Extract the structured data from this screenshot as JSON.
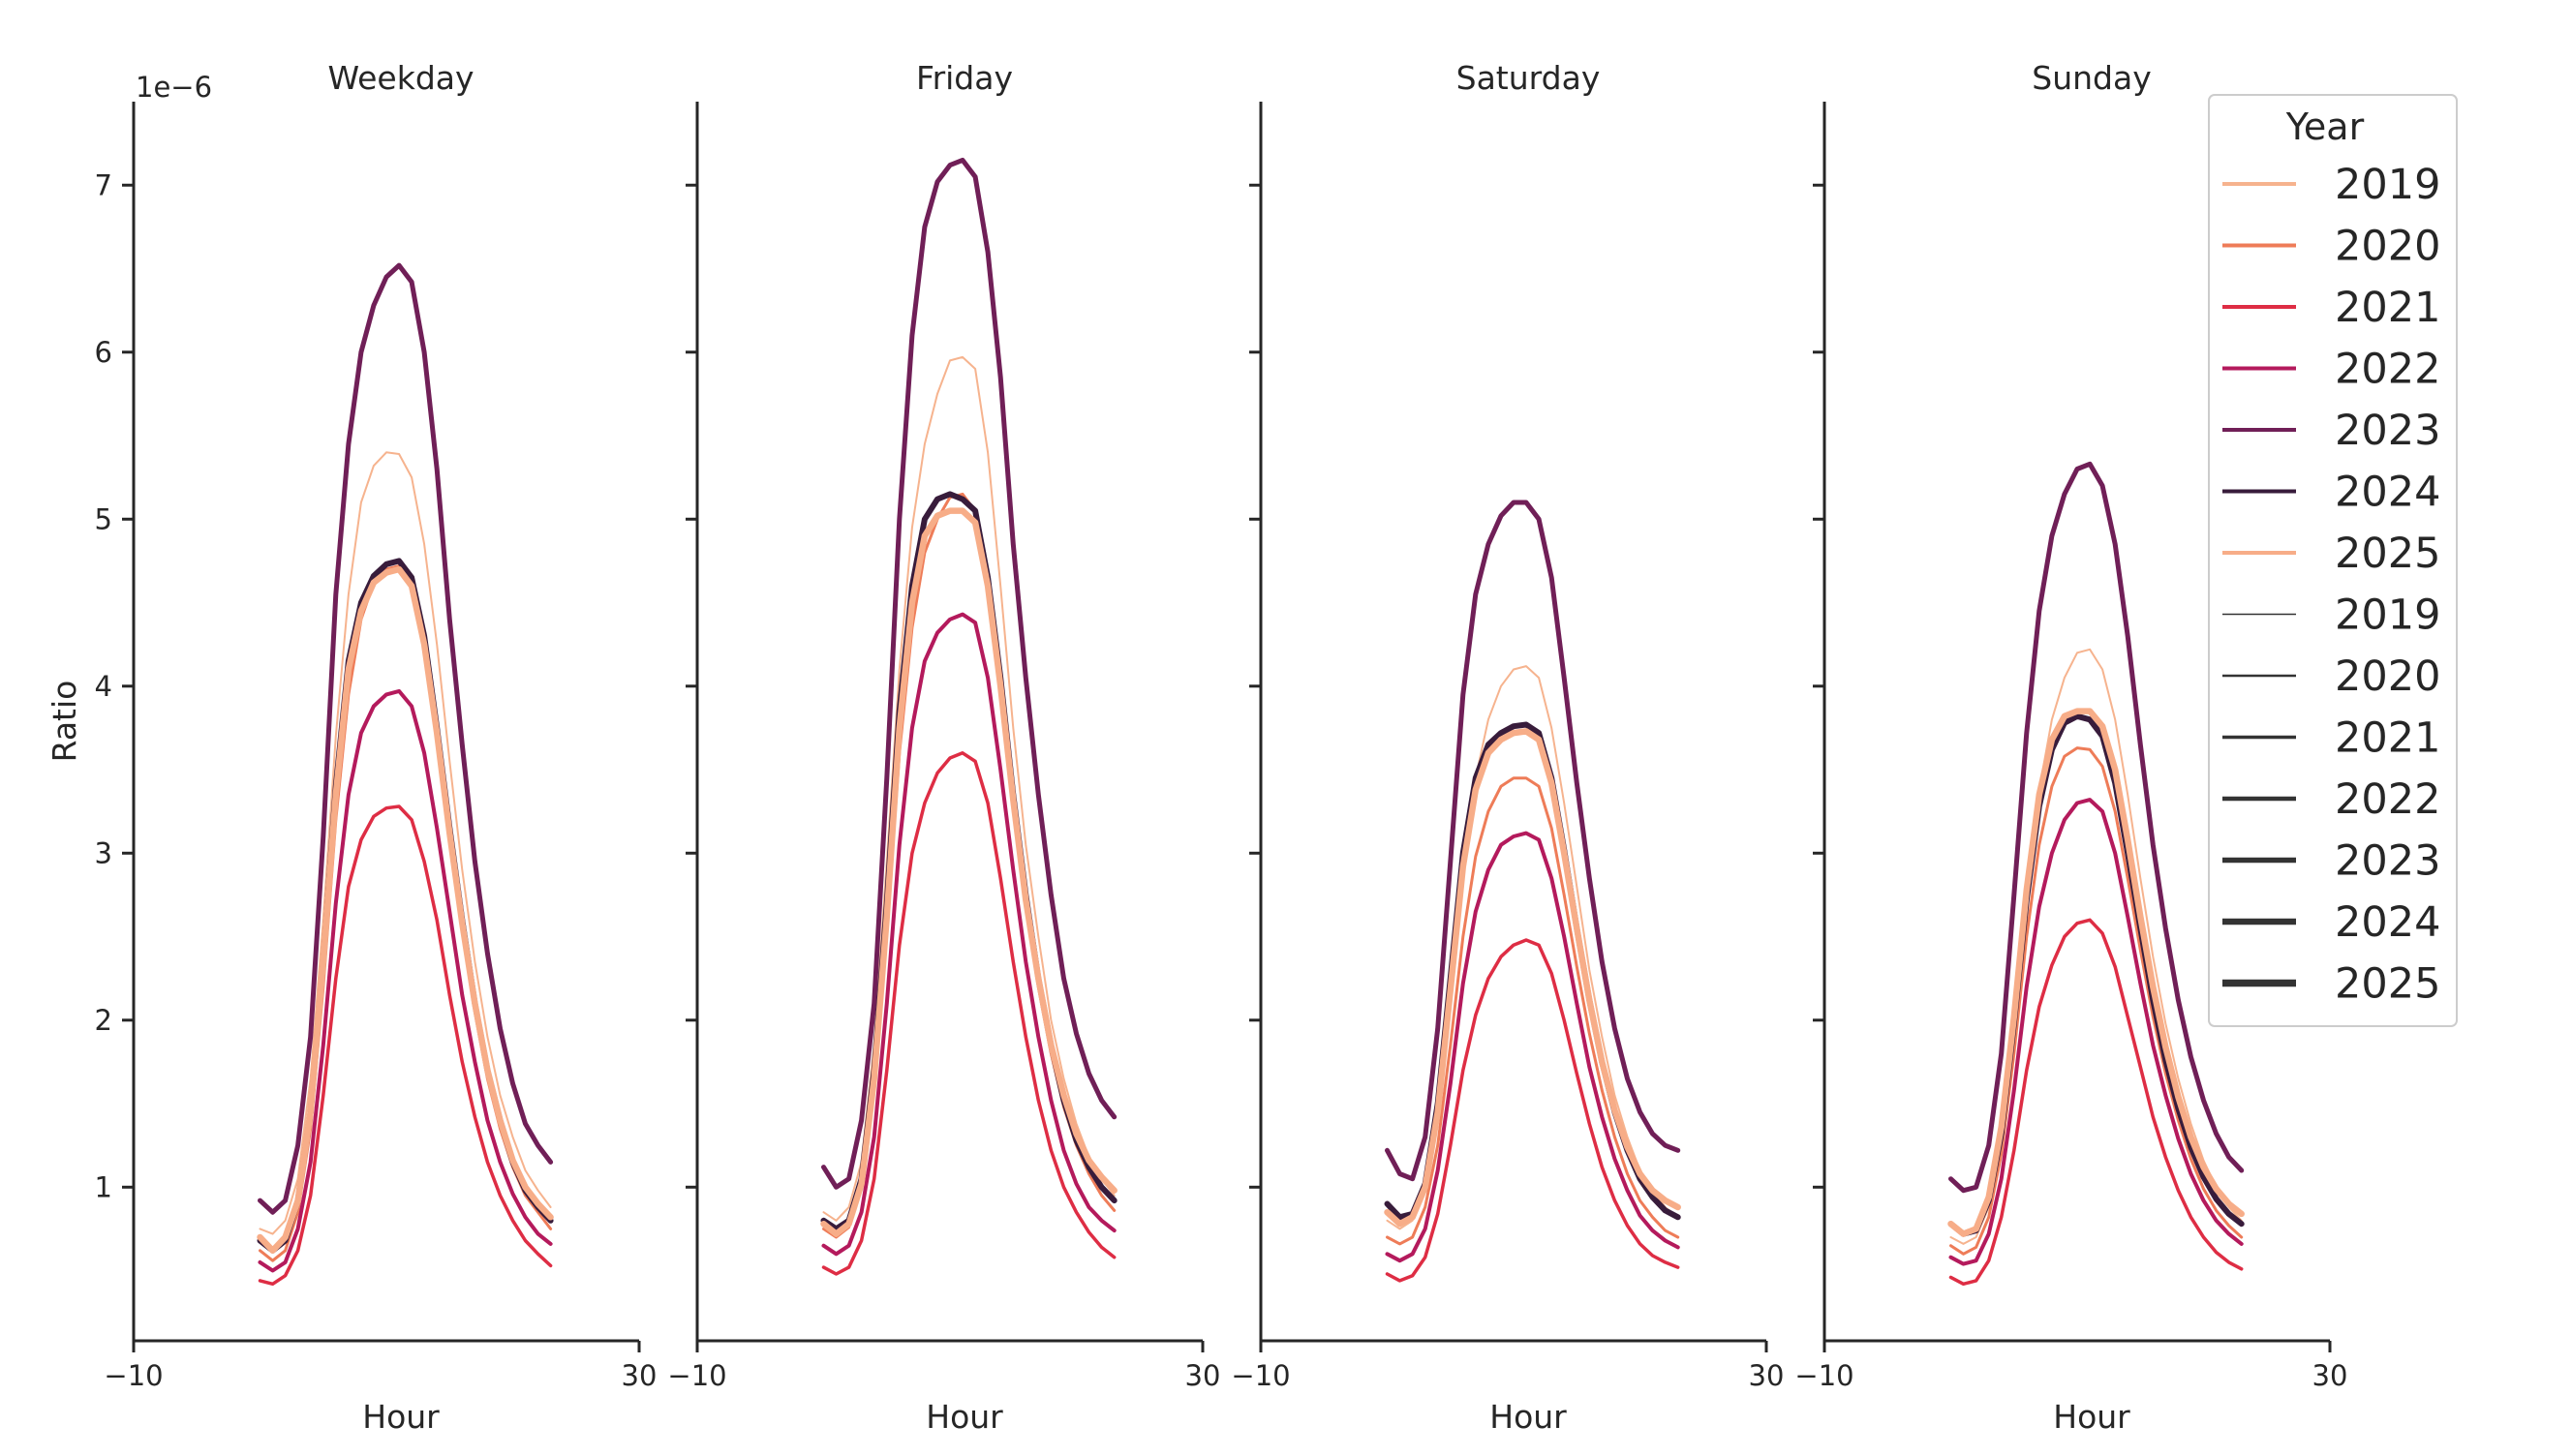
{
  "chart_data": {
    "type": "line",
    "ylabel": "Ratio",
    "xlabel": "Hour",
    "y_offset_text": "1e−6",
    "xlim": [
      -10,
      30
    ],
    "ylim": [
      0.08,
      7.5
    ],
    "xticks": [
      -10,
      30
    ],
    "xtick_labels": [
      "−10",
      "30"
    ],
    "yticks": [
      1,
      2,
      3,
      4,
      5,
      6,
      7
    ],
    "grid": false,
    "legend": {
      "placement": "top-right",
      "title": "Year",
      "hue_entries": [
        {
          "label": "2019",
          "color": "#f6b38e"
        },
        {
          "label": "2020",
          "color": "#ee7c58"
        },
        {
          "label": "2021",
          "color": "#de2d44"
        },
        {
          "label": "2022",
          "color": "#b41a5c"
        },
        {
          "label": "2023",
          "color": "#701f57"
        },
        {
          "label": "2024",
          "color": "#381c3b"
        },
        {
          "label": "2025",
          "color": "#f7ad88"
        }
      ],
      "size_entries": [
        {
          "label": "2019",
          "color": "#333333"
        },
        {
          "label": "2020",
          "color": "#333333"
        },
        {
          "label": "2021",
          "color": "#333333"
        },
        {
          "label": "2022",
          "color": "#333333"
        },
        {
          "label": "2023",
          "color": "#333333"
        },
        {
          "label": "2024",
          "color": "#333333"
        },
        {
          "label": "2025",
          "color": "#333333"
        }
      ]
    },
    "hours": [
      0,
      1,
      2,
      3,
      4,
      5,
      6,
      7,
      8,
      9,
      10,
      11,
      12,
      13,
      14,
      15,
      16,
      17,
      18,
      19,
      20,
      21,
      22,
      23
    ],
    "panels": [
      {
        "title": "Weekday",
        "series": [
          {
            "year": "2019",
            "color": "#f6b38e",
            "values": [
              0.75,
              0.72,
              0.8,
              1.05,
              1.65,
              2.6,
              3.7,
              4.55,
              5.1,
              5.32,
              5.4,
              5.39,
              5.25,
              4.85,
              4.25,
              3.55,
              2.9,
              2.35,
              1.9,
              1.55,
              1.3,
              1.1,
              0.98,
              0.88
            ]
          },
          {
            "year": "2020",
            "color": "#ee7c58",
            "values": [
              0.62,
              0.56,
              0.62,
              0.85,
              1.35,
              2.2,
              3.2,
              3.95,
              4.4,
              4.62,
              4.7,
              4.72,
              4.6,
              4.25,
              3.7,
              3.1,
              2.55,
              2.05,
              1.65,
              1.35,
              1.12,
              0.95,
              0.85,
              0.75
            ]
          },
          {
            "year": "2021",
            "color": "#de2d44",
            "values": [
              0.44,
              0.42,
              0.47,
              0.62,
              0.95,
              1.55,
              2.25,
              2.8,
              3.08,
              3.22,
              3.27,
              3.28,
              3.2,
              2.95,
              2.6,
              2.15,
              1.75,
              1.42,
              1.15,
              0.95,
              0.8,
              0.68,
              0.6,
              0.53
            ]
          },
          {
            "year": "2022",
            "color": "#b41a5c",
            "values": [
              0.55,
              0.5,
              0.55,
              0.75,
              1.15,
              1.85,
              2.7,
              3.35,
              3.72,
              3.88,
              3.95,
              3.97,
              3.88,
              3.6,
              3.15,
              2.65,
              2.15,
              1.75,
              1.4,
              1.15,
              0.96,
              0.82,
              0.72,
              0.66
            ]
          },
          {
            "year": "2023",
            "color": "#701f57",
            "values": [
              0.92,
              0.85,
              0.92,
              1.25,
              1.9,
              3.1,
              4.55,
              5.45,
              6.0,
              6.28,
              6.45,
              6.52,
              6.42,
              6.0,
              5.3,
              4.4,
              3.65,
              2.95,
              2.4,
              1.95,
              1.62,
              1.38,
              1.25,
              1.15
            ]
          },
          {
            "year": "2024",
            "color": "#381c3b",
            "values": [
              0.68,
              0.62,
              0.68,
              0.92,
              1.45,
              2.35,
              3.4,
              4.15,
              4.5,
              4.66,
              4.73,
              4.75,
              4.65,
              4.3,
              3.75,
              3.15,
              2.6,
              2.1,
              1.7,
              1.4,
              1.15,
              0.98,
              0.88,
              0.8
            ]
          },
          {
            "year": "2025",
            "color": "#f7ad88",
            "values": [
              0.7,
              0.62,
              0.7,
              0.92,
              1.45,
              2.35,
              3.35,
              4.1,
              4.45,
              4.62,
              4.68,
              4.7,
              4.6,
              4.25,
              3.72,
              3.12,
              2.58,
              2.1,
              1.7,
              1.4,
              1.16,
              1.0,
              0.9,
              0.82
            ]
          }
        ]
      },
      {
        "title": "Friday",
        "series": [
          {
            "year": "2019",
            "color": "#f6b38e",
            "values": [
              0.85,
              0.8,
              0.88,
              1.15,
              1.85,
              2.95,
              4.1,
              4.95,
              5.45,
              5.75,
              5.95,
              5.97,
              5.9,
              5.4,
              4.6,
              3.75,
              3.05,
              2.5,
              2.0,
              1.65,
              1.38,
              1.18,
              1.05,
              0.95
            ]
          },
          {
            "year": "2020",
            "color": "#ee7c58",
            "values": [
              0.75,
              0.7,
              0.76,
              1.0,
              1.6,
              2.55,
              3.6,
              4.35,
              4.8,
              5.0,
              5.13,
              5.15,
              5.05,
              4.65,
              4.0,
              3.3,
              2.7,
              2.2,
              1.8,
              1.48,
              1.25,
              1.08,
              0.95,
              0.86
            ]
          },
          {
            "year": "2021",
            "color": "#de2d44",
            "values": [
              0.52,
              0.48,
              0.52,
              0.68,
              1.05,
              1.7,
              2.45,
              3.0,
              3.3,
              3.48,
              3.57,
              3.6,
              3.55,
              3.3,
              2.85,
              2.35,
              1.9,
              1.52,
              1.22,
              1.0,
              0.85,
              0.73,
              0.64,
              0.58
            ]
          },
          {
            "year": "2022",
            "color": "#b41a5c",
            "values": [
              0.65,
              0.6,
              0.65,
              0.85,
              1.3,
              2.1,
              3.05,
              3.75,
              4.15,
              4.32,
              4.4,
              4.43,
              4.38,
              4.05,
              3.5,
              2.9,
              2.35,
              1.9,
              1.52,
              1.22,
              1.02,
              0.88,
              0.8,
              0.74
            ]
          },
          {
            "year": "2023",
            "color": "#701f57",
            "values": [
              1.12,
              1.0,
              1.05,
              1.4,
              2.1,
              3.45,
              5.0,
              6.1,
              6.75,
              7.02,
              7.12,
              7.15,
              7.05,
              6.6,
              5.85,
              4.85,
              4.05,
              3.35,
              2.75,
              2.25,
              1.92,
              1.68,
              1.52,
              1.42
            ]
          },
          {
            "year": "2024",
            "color": "#381c3b",
            "values": [
              0.8,
              0.75,
              0.8,
              1.05,
              1.7,
              2.7,
              3.85,
              4.6,
              5.0,
              5.12,
              5.15,
              5.12,
              5.05,
              4.65,
              4.05,
              3.35,
              2.75,
              2.25,
              1.85,
              1.52,
              1.28,
              1.12,
              1.0,
              0.92
            ]
          },
          {
            "year": "2025",
            "color": "#f7ad88",
            "values": [
              0.78,
              0.72,
              0.78,
              1.02,
              1.65,
              2.62,
              3.75,
              4.5,
              4.9,
              5.02,
              5.05,
              5.05,
              4.98,
              4.6,
              4.0,
              3.32,
              2.72,
              2.25,
              1.85,
              1.55,
              1.32,
              1.16,
              1.06,
              0.98
            ]
          }
        ]
      },
      {
        "title": "Saturday",
        "series": [
          {
            "year": "2019",
            "color": "#f6b38e",
            "values": [
              0.8,
              0.75,
              0.8,
              1.0,
              1.45,
              2.15,
              2.9,
              3.45,
              3.8,
              4.0,
              4.1,
              4.12,
              4.05,
              3.75,
              3.3,
              2.8,
              2.3,
              1.9,
              1.55,
              1.3,
              1.1,
              0.98,
              0.88,
              0.82
            ]
          },
          {
            "year": "2020",
            "color": "#ee7c58",
            "values": [
              0.7,
              0.66,
              0.7,
              0.88,
              1.25,
              1.85,
              2.5,
              2.98,
              3.25,
              3.4,
              3.45,
              3.45,
              3.4,
              3.15,
              2.75,
              2.32,
              1.92,
              1.58,
              1.3,
              1.08,
              0.92,
              0.82,
              0.74,
              0.7
            ]
          },
          {
            "year": "2021",
            "color": "#de2d44",
            "values": [
              0.48,
              0.44,
              0.47,
              0.58,
              0.84,
              1.25,
              1.7,
              2.03,
              2.25,
              2.38,
              2.45,
              2.48,
              2.45,
              2.28,
              2.0,
              1.68,
              1.38,
              1.12,
              0.92,
              0.77,
              0.66,
              0.59,
              0.55,
              0.52
            ]
          },
          {
            "year": "2022",
            "color": "#b41a5c",
            "values": [
              0.6,
              0.56,
              0.6,
              0.75,
              1.1,
              1.62,
              2.22,
              2.65,
              2.9,
              3.05,
              3.1,
              3.12,
              3.08,
              2.85,
              2.5,
              2.1,
              1.72,
              1.42,
              1.17,
              0.98,
              0.83,
              0.74,
              0.68,
              0.64
            ]
          },
          {
            "year": "2023",
            "color": "#701f57",
            "values": [
              1.22,
              1.08,
              1.05,
              1.3,
              1.95,
              2.95,
              3.95,
              4.55,
              4.85,
              5.02,
              5.1,
              5.1,
              5.0,
              4.65,
              4.05,
              3.42,
              2.85,
              2.35,
              1.95,
              1.65,
              1.45,
              1.32,
              1.25,
              1.22
            ]
          },
          {
            "year": "2024",
            "color": "#381c3b",
            "values": [
              0.9,
              0.82,
              0.84,
              1.02,
              1.5,
              2.25,
              3.0,
              3.45,
              3.65,
              3.72,
              3.76,
              3.77,
              3.72,
              3.45,
              3.02,
              2.55,
              2.12,
              1.75,
              1.45,
              1.22,
              1.05,
              0.94,
              0.86,
              0.82
            ]
          },
          {
            "year": "2025",
            "color": "#f7ad88",
            "values": [
              0.85,
              0.78,
              0.82,
              1.0,
              1.45,
              2.18,
              2.92,
              3.38,
              3.6,
              3.68,
              3.72,
              3.73,
              3.68,
              3.42,
              3.0,
              2.55,
              2.12,
              1.75,
              1.46,
              1.24,
              1.08,
              0.98,
              0.92,
              0.88
            ]
          }
        ]
      },
      {
        "title": "Sunday",
        "series": [
          {
            "year": "2019",
            "color": "#f6b38e",
            "values": [
              0.7,
              0.66,
              0.7,
              0.88,
              1.3,
              1.95,
              2.75,
              3.38,
              3.8,
              4.05,
              4.2,
              4.22,
              4.1,
              3.8,
              3.35,
              2.85,
              2.38,
              1.98,
              1.65,
              1.38,
              1.16,
              1.0,
              0.88,
              0.8
            ]
          },
          {
            "year": "2020",
            "color": "#ee7c58",
            "values": [
              0.65,
              0.6,
              0.64,
              0.82,
              1.2,
              1.8,
              2.5,
              3.05,
              3.4,
              3.58,
              3.63,
              3.62,
              3.52,
              3.25,
              2.85,
              2.42,
              2.02,
              1.68,
              1.4,
              1.17,
              0.99,
              0.86,
              0.77,
              0.7
            ]
          },
          {
            "year": "2021",
            "color": "#de2d44",
            "values": [
              0.46,
              0.42,
              0.44,
              0.56,
              0.82,
              1.22,
              1.7,
              2.08,
              2.33,
              2.5,
              2.58,
              2.6,
              2.52,
              2.32,
              2.02,
              1.72,
              1.42,
              1.18,
              0.98,
              0.82,
              0.7,
              0.61,
              0.55,
              0.51
            ]
          },
          {
            "year": "2022",
            "color": "#b41a5c",
            "values": [
              0.58,
              0.54,
              0.56,
              0.72,
              1.05,
              1.58,
              2.2,
              2.68,
              3.0,
              3.2,
              3.3,
              3.32,
              3.25,
              3.0,
              2.62,
              2.22,
              1.85,
              1.55,
              1.29,
              1.08,
              0.92,
              0.8,
              0.72,
              0.66
            ]
          },
          {
            "year": "2023",
            "color": "#701f57",
            "values": [
              1.05,
              0.98,
              1.0,
              1.25,
              1.8,
              2.75,
              3.72,
              4.45,
              4.9,
              5.15,
              5.3,
              5.33,
              5.2,
              4.85,
              4.3,
              3.65,
              3.05,
              2.55,
              2.12,
              1.78,
              1.52,
              1.32,
              1.18,
              1.1
            ]
          },
          {
            "year": "2024",
            "color": "#381c3b",
            "values": [
              0.78,
              0.72,
              0.74,
              0.92,
              1.32,
              1.98,
              2.72,
              3.28,
              3.62,
              3.78,
              3.82,
              3.8,
              3.7,
              3.42,
              3.0,
              2.55,
              2.12,
              1.76,
              1.47,
              1.24,
              1.06,
              0.93,
              0.84,
              0.78
            ]
          },
          {
            "year": "2025",
            "color": "#f7ad88",
            "values": [
              0.78,
              0.72,
              0.75,
              0.94,
              1.36,
              2.02,
              2.78,
              3.35,
              3.68,
              3.82,
              3.85,
              3.85,
              3.76,
              3.5,
              3.08,
              2.62,
              2.2,
              1.84,
              1.54,
              1.3,
              1.12,
              0.99,
              0.9,
              0.84
            ]
          }
        ]
      }
    ],
    "line_widths": {
      "2019": 2,
      "2020": 3,
      "2021": 3.5,
      "2022": 4,
      "2023": 5,
      "2024": 6,
      "2025": 6.5
    }
  }
}
